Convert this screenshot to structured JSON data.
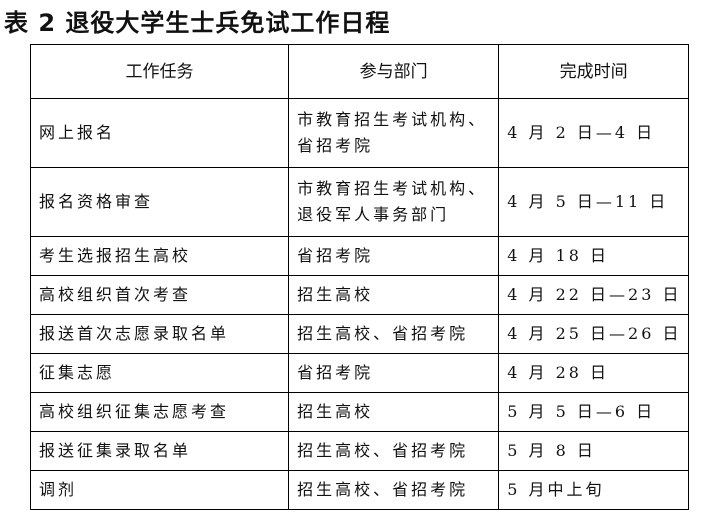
{
  "title": "表 2  退役大学生士兵免试工作日程",
  "table": {
    "headers": [
      "工作任务",
      "参与部门",
      "完成时间"
    ],
    "rows": [
      {
        "task": "网上报名",
        "dept": [
          "市教育招生考试机构、",
          "省招考院"
        ],
        "time": "4 月 2 日—4 日"
      },
      {
        "task": "报名资格审查",
        "dept": [
          "市教育招生考试机构、",
          "退役军人事务部门"
        ],
        "time": "4 月 5 日—11 日"
      },
      {
        "task": "考生选报招生高校",
        "dept": [
          "省招考院"
        ],
        "time": "4 月 18 日"
      },
      {
        "task": "高校组织首次考查",
        "dept": [
          "招生高校"
        ],
        "time": "4 月 22 日—23 日"
      },
      {
        "task": "报送首次志愿录取名单",
        "dept": [
          "招生高校、省招考院"
        ],
        "time": "4 月 25 日—26 日"
      },
      {
        "task": "征集志愿",
        "dept": [
          "省招考院"
        ],
        "time": "4 月 28 日"
      },
      {
        "task": "高校组织征集志愿考查",
        "dept": [
          "招生高校"
        ],
        "time": "5 月 5 日—6 日"
      },
      {
        "task": "报送征集录取名单",
        "dept": [
          "招生高校、省招考院"
        ],
        "time": "5 月 8 日"
      },
      {
        "task": "调剂",
        "dept": [
          "招生高校、省招考院"
        ],
        "time": "5 月中上旬"
      }
    ]
  }
}
